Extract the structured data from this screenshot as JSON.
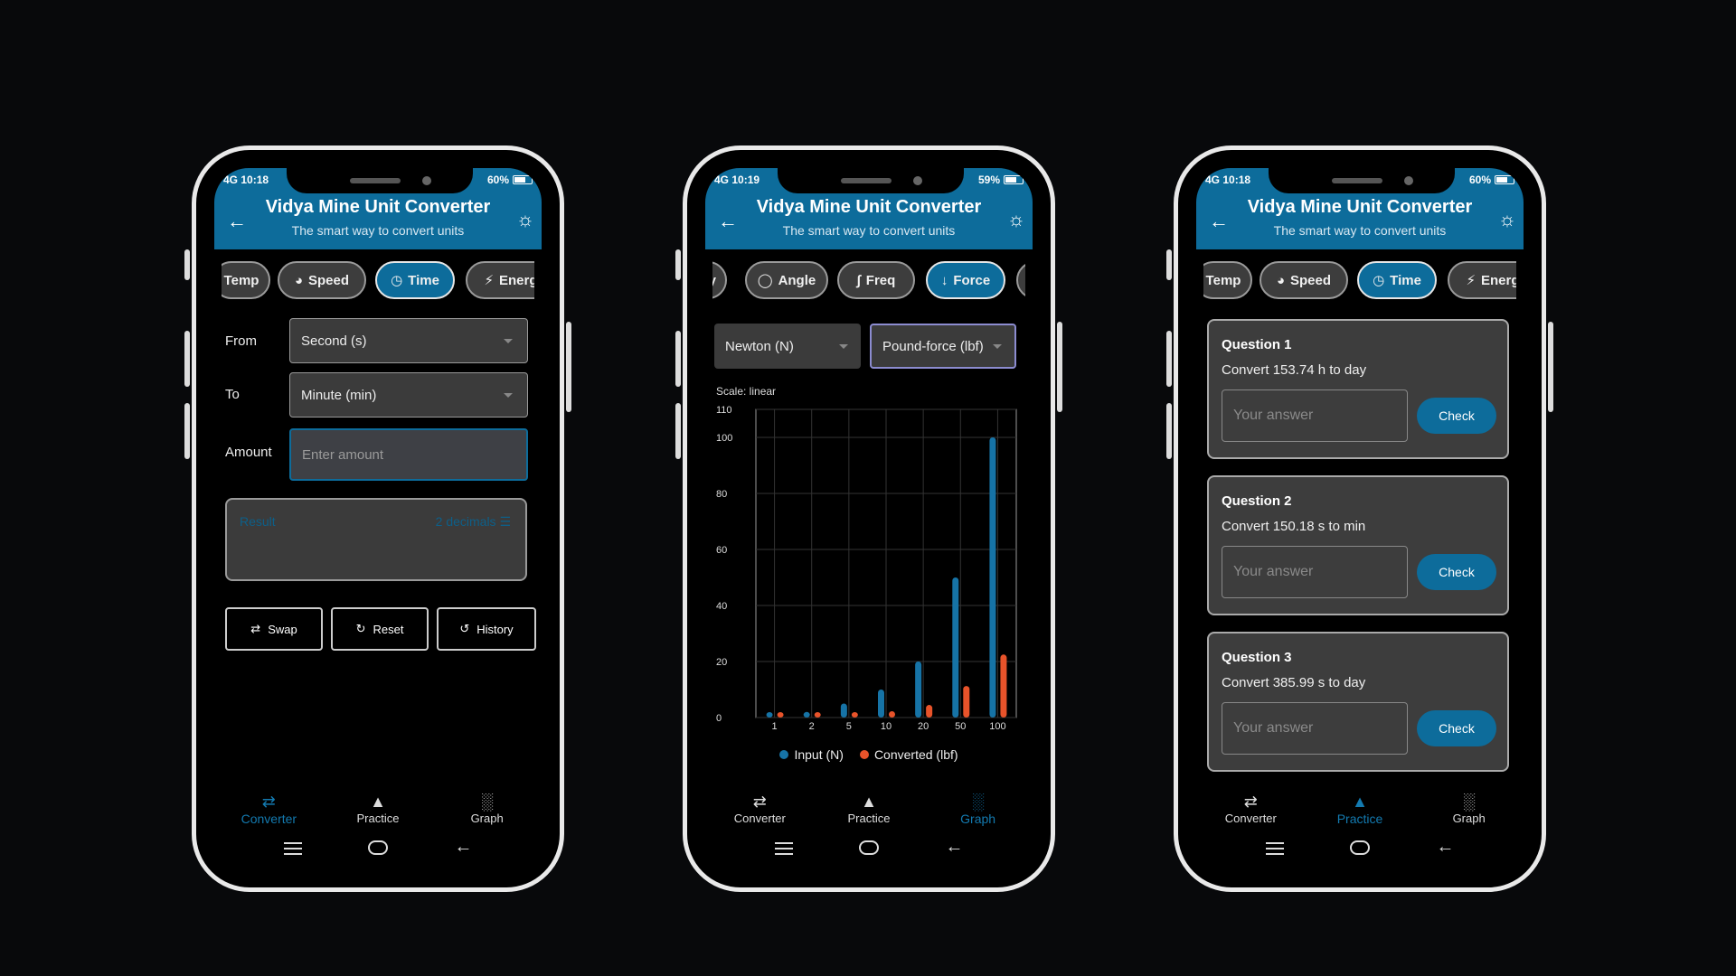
{
  "app": {
    "title": "Vidya Mine Unit Converter",
    "subtitle": "The smart way to convert units"
  },
  "colors": {
    "primary": "#0d6c9b",
    "series_input": "#1673a6",
    "series_converted": "#e8532a"
  },
  "phones": [
    {
      "status": {
        "time": "10:18",
        "signal": "4G",
        "battery": "60%"
      },
      "chips": [
        {
          "label": "Temp",
          "icon": ""
        },
        {
          "label": "Speed",
          "icon": "gauge-icon"
        },
        {
          "label": "Time",
          "icon": "clock-icon"
        },
        {
          "label": "Energ",
          "icon": "bolt-icon"
        }
      ],
      "converter": {
        "from_label": "From",
        "from_value": "Second (s)",
        "to_label": "To",
        "to_value": "Minute (min)",
        "amount_label": "Amount",
        "amount_placeholder": "Enter amount",
        "result_label": "Result",
        "decimals_label": "2 decimals ☰",
        "swap": "Swap",
        "reset": "Reset",
        "history": "History"
      },
      "nav": [
        {
          "label": "Converter",
          "icon": "swap-icon",
          "active": true
        },
        {
          "label": "Practice",
          "icon": "school-icon",
          "active": false
        },
        {
          "label": "Graph",
          "icon": "bar-chart-icon",
          "active": false
        }
      ]
    },
    {
      "status": {
        "time": "10:19",
        "signal": "4G",
        "battery": "59%"
      },
      "chips": [
        {
          "label": "y",
          "icon": ""
        },
        {
          "label": "Angle",
          "icon": "circle-icon"
        },
        {
          "label": "Freq",
          "icon": "pulse-icon"
        },
        {
          "label": "Force",
          "icon": "arrow-down-icon"
        }
      ],
      "graph": {
        "from_value": "Newton (N)",
        "to_value": "Pound-force (lbf)",
        "scale_label": "Scale: linear"
      },
      "nav": [
        {
          "label": "Converter",
          "icon": "swap-icon",
          "active": false
        },
        {
          "label": "Practice",
          "icon": "school-icon",
          "active": false
        },
        {
          "label": "Graph",
          "icon": "bar-chart-icon",
          "active": true
        }
      ]
    },
    {
      "status": {
        "time": "10:18",
        "signal": "4G",
        "battery": "60%"
      },
      "chips": [
        {
          "label": "Temp",
          "icon": ""
        },
        {
          "label": "Speed",
          "icon": "gauge-icon"
        },
        {
          "label": "Time",
          "icon": "clock-icon"
        },
        {
          "label": "Energ",
          "icon": "bolt-icon"
        }
      ],
      "questions": [
        {
          "title": "Question 1",
          "prompt": "Convert 153.74 h to day",
          "placeholder": "Your answer",
          "button": "Check"
        },
        {
          "title": "Question 2",
          "prompt": "Convert 150.18 s to min",
          "placeholder": "Your answer",
          "button": "Check"
        },
        {
          "title": "Question 3",
          "prompt": "Convert 385.99 s to day",
          "placeholder": "Your answer",
          "button": "Check"
        }
      ],
      "nav": [
        {
          "label": "Converter",
          "icon": "swap-icon",
          "active": false
        },
        {
          "label": "Practice",
          "icon": "school-icon",
          "active": true
        },
        {
          "label": "Graph",
          "icon": "bar-chart-icon",
          "active": false
        }
      ]
    }
  ],
  "chart_data": {
    "type": "bar",
    "categories": [
      "1",
      "2",
      "5",
      "10",
      "20",
      "50",
      "100"
    ],
    "series": [
      {
        "name": "Input (N)",
        "values": [
          1,
          2,
          5,
          10,
          20,
          50,
          100
        ]
      },
      {
        "name": "Converted (lbf)",
        "values": [
          0.22,
          0.45,
          1.12,
          2.25,
          4.5,
          11.24,
          22.48
        ]
      }
    ],
    "yticks": [
      "0",
      "20",
      "40",
      "60",
      "80",
      "100",
      "110"
    ],
    "ylim": [
      0,
      110
    ],
    "scale": "linear",
    "grid": true,
    "legend_position": "bottom"
  }
}
